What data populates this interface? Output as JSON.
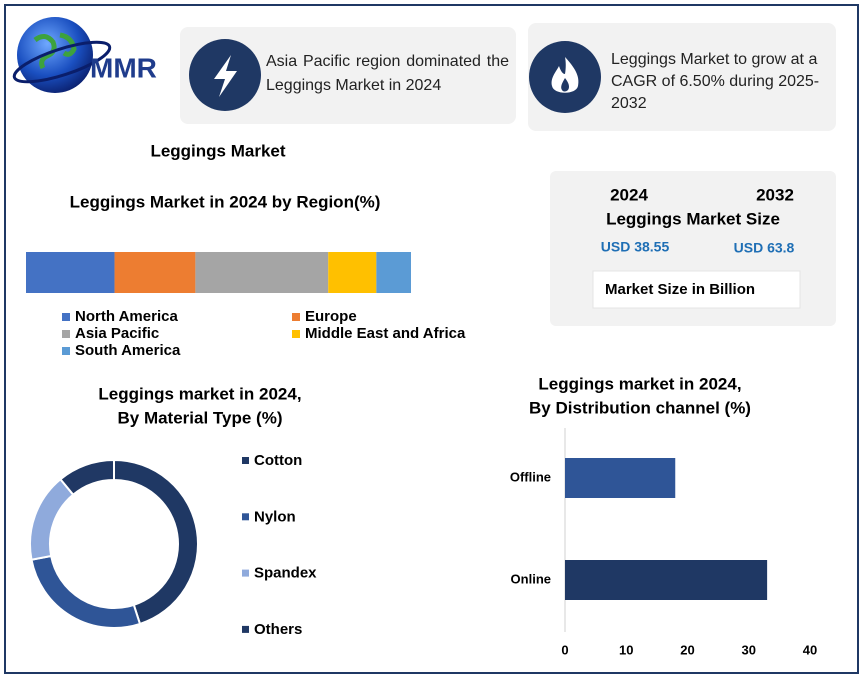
{
  "logo": "MMR",
  "cards": [
    {
      "text": "Asia Pacific region dominated the Leggings Market in 2024"
    },
    {
      "text": "Leggings Market to grow at a CAGR of 6.50% during 2025-2032"
    }
  ],
  "heading": "Leggings Market",
  "market_size": {
    "years": [
      "2024",
      "2032"
    ],
    "label": "Leggings Market Size",
    "amounts": [
      "USD 38.55",
      "USD 63.8"
    ],
    "unit": "Market Size in Billion"
  },
  "chart_data": [
    {
      "type": "stacked",
      "title": "Leggings Market in 2024 by Region(%)",
      "series": [
        {
          "name": "North America",
          "color": "#4472c4",
          "values": [
            23
          ]
        },
        {
          "name": "Europe",
          "color": "#ed7d31",
          "values": [
            21
          ]
        },
        {
          "name": "Asia Pacific",
          "color": "#a5a5a5",
          "values": [
            34.5
          ]
        },
        {
          "name": "Middle East and Africa",
          "color": "#ffc000",
          "values": [
            12.5
          ]
        },
        {
          "name": "South America",
          "color": "#5b9bd5",
          "values": [
            9
          ]
        }
      ]
    },
    {
      "type": "donut",
      "title": [
        "Leggings market in 2024,",
        "By Material Type (%)"
      ],
      "categories": [
        "Cotton",
        "Nylon",
        "Spandex",
        "Others"
      ],
      "values": [
        45,
        27,
        17,
        11
      ],
      "colors": [
        "#1f3864",
        "#2f5597",
        "#8faadc",
        "#203864"
      ]
    },
    {
      "type": "bar",
      "title": [
        "Leggings market in 2024,",
        "By Distribution channel (%)"
      ],
      "categories": [
        "Offline",
        "Online"
      ],
      "values": [
        18,
        33
      ],
      "colors": [
        "#2f5597",
        "#1f3864"
      ],
      "xlim": [
        0,
        40
      ],
      "xticks": [
        0,
        10,
        20,
        30,
        40
      ]
    }
  ]
}
